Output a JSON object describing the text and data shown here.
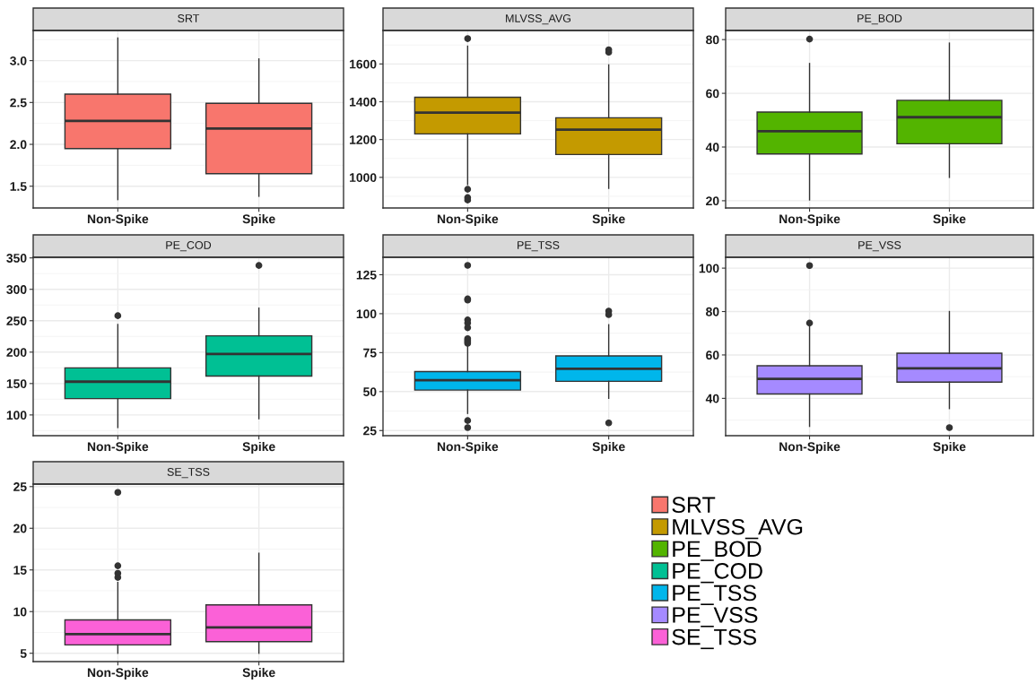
{
  "chart_data": [
    {
      "type": "box",
      "title": "SRT",
      "categories": [
        "Non-Spike",
        "Spike"
      ],
      "series": [
        {
          "name": "SRT",
          "color": "#f8766d",
          "boxes": [
            {
              "low": 1.34,
              "q1": 1.95,
              "median": 2.28,
              "q3": 2.6,
              "high": 3.27
            },
            {
              "low": 1.38,
              "q1": 1.65,
              "median": 2.19,
              "q3": 2.49,
              "high": 3.02
            }
          ]
        }
      ],
      "ylim": [
        1.24,
        3.36
      ],
      "yticks": [
        {
          "value": 1.25,
          "label": null
        },
        1.5,
        {
          "value": 1.75,
          "label": null
        },
        {
          "value": 2,
          "label": "2.0"
        },
        {
          "value": 2.25,
          "label": null
        },
        2.5,
        {
          "value": 2.75,
          "label": null
        },
        {
          "value": 3,
          "label": "3.0"
        },
        {
          "value": 3.25,
          "label": null
        }
      ],
      "grid": true
    },
    {
      "type": "box",
      "title": "MLVSS_AVG",
      "categories": [
        "Non-Spike",
        "Spike"
      ],
      "series": [
        {
          "name": "MLVSS_AVG",
          "color": "#c49a00",
          "boxes": [
            {
              "low": 962,
              "q1": 1230,
              "median": 1342,
              "q3": 1424,
              "high": 1694,
              "outliers": [
                1734,
                937,
                893,
                880
              ]
            },
            {
              "low": 942,
              "q1": 1121,
              "median": 1252,
              "q3": 1315,
              "high": 1595,
              "outliers": [
                1675,
                1662
              ]
            }
          ]
        }
      ],
      "ylim": [
        838,
        1777
      ],
      "yticks": [
        {
          "value": 900,
          "label": null
        },
        1000,
        {
          "value": 1100,
          "label": null
        },
        1200,
        {
          "value": 1300,
          "label": null
        },
        1400,
        {
          "value": 1500,
          "label": null
        },
        1600,
        {
          "value": 1700,
          "label": null
        }
      ],
      "grid": true
    },
    {
      "type": "box",
      "title": "PE_BOD",
      "categories": [
        "Non-Spike",
        "Spike"
      ],
      "series": [
        {
          "name": "PE_BOD",
          "color": "#53b400",
          "boxes": [
            {
              "low": 20.3,
              "q1": 37.4,
              "median": 45.9,
              "q3": 53,
              "high": 71.1,
              "outliers": [
                80.2
              ]
            },
            {
              "low": 28.7,
              "q1": 41.2,
              "median": 51.1,
              "q3": 57.4,
              "high": 78.7
            }
          ]
        }
      ],
      "ylim": [
        17.3,
        83.4
      ],
      "yticks": [
        20,
        {
          "value": 30,
          "label": null
        },
        40,
        {
          "value": 50,
          "label": null
        },
        60,
        {
          "value": 70,
          "label": null
        },
        80
      ],
      "grid": true
    },
    {
      "type": "box",
      "title": "PE_COD",
      "categories": [
        "Non-Spike",
        "Spike"
      ],
      "series": [
        {
          "name": "PE_COD",
          "color": "#00c094",
          "boxes": [
            {
              "low": 80,
              "q1": 126,
              "median": 153,
              "q3": 175,
              "high": 244,
              "outliers": [
                258
              ]
            },
            {
              "low": 94,
              "q1": 162,
              "median": 197,
              "q3": 226,
              "high": 270,
              "outliers": [
                338
              ]
            }
          ]
        }
      ],
      "ylim": [
        67,
        351
      ],
      "yticks": [
        {
          "value": 75,
          "label": null
        },
        100,
        {
          "value": 125,
          "label": null
        },
        150,
        {
          "value": 175,
          "label": null
        },
        200,
        {
          "value": 225,
          "label": null
        },
        250,
        {
          "value": 275,
          "label": null
        },
        300,
        {
          "value": 325,
          "label": null
        },
        350
      ],
      "grid": true
    },
    {
      "type": "box",
      "title": "PE_TSS",
      "categories": [
        "Non-Spike",
        "Spike"
      ],
      "series": [
        {
          "name": "PE_TSS",
          "color": "#00b6eb",
          "boxes": [
            {
              "low": 36,
              "q1": 51,
              "median": 57.3,
              "q3": 62.8,
              "high": 79.5,
              "outliers": [
                131,
                109.5,
                108.7,
                96,
                94,
                91,
                84,
                83,
                82,
                81,
                31.4,
                26.9
              ]
            },
            {
              "low": 45.7,
              "q1": 56.6,
              "median": 64.7,
              "q3": 72.9,
              "high": 92.9,
              "outliers": [
                101.7,
                99.4,
                29.9
              ]
            }
          ]
        }
      ],
      "ylim": [
        21.7,
        136.2
      ],
      "yticks": [
        25,
        {
          "value": 37.5,
          "label": null
        },
        50,
        {
          "value": 62.5,
          "label": null
        },
        75,
        {
          "value": 87.5,
          "label": null
        },
        100,
        {
          "value": 112.5,
          "label": null
        },
        125
      ],
      "grid": true
    },
    {
      "type": "box",
      "title": "PE_VSS",
      "categories": [
        "Non-Spike",
        "Spike"
      ],
      "series": [
        {
          "name": "PE_VSS",
          "color": "#a58aff",
          "boxes": [
            {
              "low": 27.1,
              "q1": 42,
              "median": 49,
              "q3": 55,
              "high": 73,
              "outliers": [
                101.2,
                74.7
              ]
            },
            {
              "low": 35.3,
              "q1": 47.5,
              "median": 53.8,
              "q3": 60.8,
              "high": 80,
              "outliers": [
                26.5
              ]
            }
          ]
        }
      ],
      "ylim": [
        22.8,
        105
      ],
      "yticks": [
        {
          "value": 30,
          "label": null
        },
        40,
        {
          "value": 50,
          "label": null
        },
        60,
        {
          "value": 70,
          "label": null
        },
        80,
        {
          "value": 90,
          "label": null
        },
        100
      ],
      "grid": true
    },
    {
      "type": "box",
      "title": "SE_TSS",
      "categories": [
        "Non-Spike",
        "Spike"
      ],
      "series": [
        {
          "name": "SE_TSS",
          "color": "#fb61d7",
          "boxes": [
            {
              "low": 5.0,
              "q1": 6.0,
              "median": 7.3,
              "q3": 9.0,
              "high": 13.5,
              "outliers": [
                24.3,
                15.5,
                14.6,
                14.1
              ]
            },
            {
              "low": 5.0,
              "q1": 6.4,
              "median": 8.1,
              "q3": 10.8,
              "high": 17.0
            }
          ]
        }
      ],
      "ylim": [
        4.0,
        25.3
      ],
      "yticks": [
        5,
        {
          "value": 7.5,
          "label": null
        },
        10,
        {
          "value": 12.5,
          "label": null
        },
        15,
        {
          "value": 17.5,
          "label": null
        },
        20,
        {
          "value": 22.5,
          "label": null
        },
        25
      ],
      "grid": true,
      "legend": "right"
    }
  ]
}
